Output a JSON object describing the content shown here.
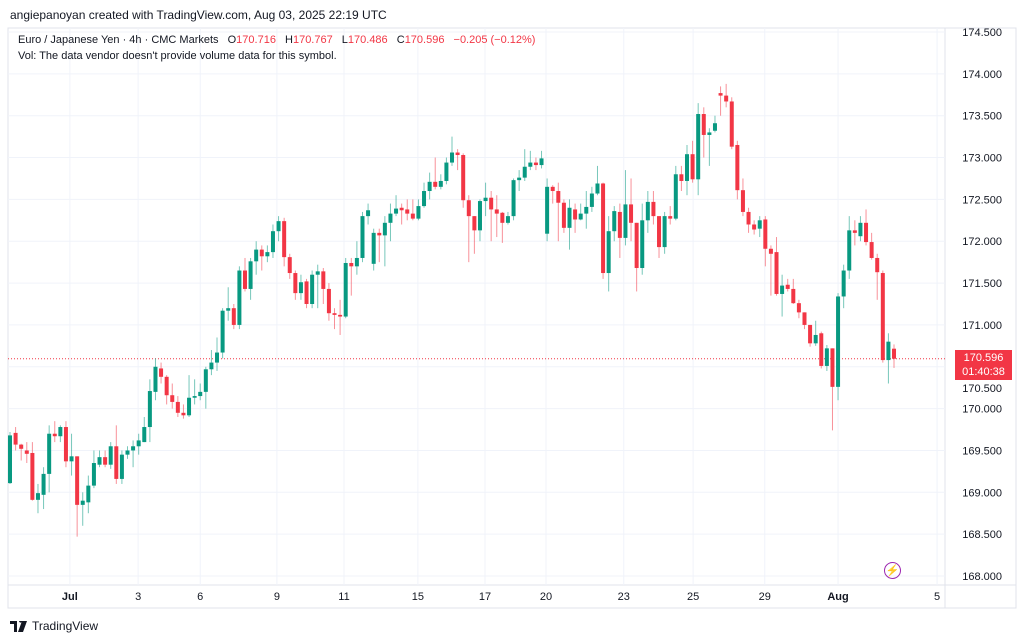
{
  "header": {
    "credit": "angiepanoyan created with TradingView.com, Aug 03, 2025 22:19 UTC",
    "symbol": "Euro / Japanese Yen · 4h · CMC Markets",
    "o_label": "O",
    "o_value": "170.716",
    "h_label": "H",
    "h_value": "170.767",
    "l_label": "L",
    "l_value": "170.486",
    "c_label": "C",
    "c_value": "170.596",
    "change": "−0.205 (−0.12%)",
    "vol_note": "Vol: The data vendor doesn't provide volume data for this symbol."
  },
  "price_tag": {
    "price": "170.596",
    "countdown": "01:40:38"
  },
  "footer": {
    "brand": "TradingView"
  },
  "icons": {
    "alert": "lightning-icon",
    "logo": "tradingview-logo-icon"
  },
  "colors": {
    "up": "#089981",
    "down": "#f23645",
    "grid": "#f0f3fa",
    "alert": "#9c27b0"
  },
  "chart_data": {
    "type": "candlestick",
    "title": "Euro / Japanese Yen · 4h · CMC Markets",
    "ylim": [
      168.0,
      174.5
    ],
    "yticks": [
      "168.000",
      "168.500",
      "169.000",
      "169.500",
      "170.000",
      "170.500",
      "171.000",
      "171.500",
      "172.000",
      "172.500",
      "173.000",
      "173.500",
      "174.000",
      "174.500"
    ],
    "xticks": [
      {
        "label": "Jul",
        "bar": 10.7,
        "bold": true
      },
      {
        "label": "3",
        "bar": 22.9
      },
      {
        "label": "6",
        "bar": 34
      },
      {
        "label": "9",
        "bar": 47.7
      },
      {
        "label": "11",
        "bar": 59.7
      },
      {
        "label": "15",
        "bar": 72.9
      },
      {
        "label": "17",
        "bar": 84.9
      },
      {
        "label": "20",
        "bar": 95.8
      },
      {
        "label": "23",
        "bar": 109.7
      },
      {
        "label": "25",
        "bar": 122.1
      },
      {
        "label": "29",
        "bar": 134.9
      },
      {
        "label": "Aug",
        "bar": 148,
        "bold": true
      },
      {
        "label": "5",
        "bar": 165.7
      }
    ],
    "last_price": 170.596,
    "ohlc": [
      [
        169.11,
        169.72,
        169.1,
        169.68
      ],
      [
        169.71,
        169.78,
        169.5,
        169.57
      ],
      [
        169.57,
        169.58,
        169.38,
        169.52
      ],
      [
        169.5,
        169.6,
        169.35,
        169.46
      ],
      [
        169.47,
        169.6,
        168.9,
        168.91
      ],
      [
        168.91,
        169.1,
        168.75,
        168.99
      ],
      [
        168.97,
        169.3,
        168.8,
        169.22
      ],
      [
        169.22,
        169.8,
        169.0,
        169.7
      ],
      [
        169.7,
        169.85,
        169.6,
        169.67
      ],
      [
        169.67,
        169.8,
        169.6,
        169.78
      ],
      [
        169.78,
        169.85,
        169.3,
        169.37
      ],
      [
        169.37,
        169.7,
        169.2,
        169.43
      ],
      [
        169.43,
        169.43,
        168.47,
        168.85
      ],
      [
        168.85,
        169.0,
        168.6,
        168.9
      ],
      [
        168.88,
        169.2,
        168.75,
        169.08
      ],
      [
        169.08,
        169.5,
        169.05,
        169.35
      ],
      [
        169.33,
        169.5,
        169.3,
        169.42
      ],
      [
        169.42,
        169.5,
        169.3,
        169.33
      ],
      [
        169.33,
        169.6,
        169.28,
        169.55
      ],
      [
        169.55,
        169.8,
        169.1,
        169.16
      ],
      [
        169.16,
        169.5,
        169.1,
        169.45
      ],
      [
        169.45,
        169.55,
        169.4,
        169.5
      ],
      [
        169.5,
        169.62,
        169.3,
        169.55
      ],
      [
        169.55,
        169.7,
        169.45,
        169.62
      ],
      [
        169.6,
        169.9,
        169.6,
        169.78
      ],
      [
        169.78,
        170.35,
        169.6,
        170.21
      ],
      [
        170.2,
        170.6,
        170.1,
        170.5
      ],
      [
        170.48,
        170.55,
        170.3,
        170.38
      ],
      [
        170.38,
        170.4,
        170.05,
        170.16
      ],
      [
        170.16,
        170.3,
        170.0,
        170.08
      ],
      [
        170.08,
        170.15,
        169.9,
        169.95
      ],
      [
        169.95,
        170.05,
        169.88,
        169.92
      ],
      [
        169.92,
        170.4,
        169.9,
        170.13
      ],
      [
        170.13,
        170.35,
        170.05,
        170.15
      ],
      [
        170.15,
        170.3,
        170.1,
        170.2
      ],
      [
        170.2,
        170.5,
        170.0,
        170.47
      ],
      [
        170.47,
        170.7,
        170.4,
        170.55
      ],
      [
        170.55,
        170.85,
        170.45,
        170.67
      ],
      [
        170.67,
        171.2,
        170.6,
        171.17
      ],
      [
        171.17,
        171.45,
        171.05,
        171.2
      ],
      [
        171.2,
        171.25,
        170.95,
        171.0
      ],
      [
        171.0,
        171.7,
        170.95,
        171.65
      ],
      [
        171.65,
        171.8,
        171.4,
        171.43
      ],
      [
        171.43,
        171.8,
        171.3,
        171.76
      ],
      [
        171.76,
        172.0,
        171.6,
        171.9
      ],
      [
        171.9,
        171.95,
        171.65,
        171.82
      ],
      [
        171.82,
        171.95,
        171.75,
        171.87
      ],
      [
        171.87,
        172.2,
        171.8,
        172.12
      ],
      [
        172.12,
        172.3,
        172.0,
        172.24
      ],
      [
        172.24,
        172.28,
        171.7,
        171.81
      ],
      [
        171.81,
        171.85,
        171.55,
        171.62
      ],
      [
        171.62,
        171.65,
        171.3,
        171.38
      ],
      [
        171.38,
        171.6,
        171.3,
        171.51
      ],
      [
        171.52,
        171.55,
        171.2,
        171.25
      ],
      [
        171.25,
        171.65,
        171.2,
        171.6
      ],
      [
        171.6,
        171.72,
        171.2,
        171.64
      ],
      [
        171.64,
        171.68,
        171.25,
        171.43
      ],
      [
        171.43,
        171.5,
        171.05,
        171.14
      ],
      [
        171.14,
        171.2,
        170.95,
        171.12
      ],
      [
        171.12,
        171.3,
        170.88,
        171.1
      ],
      [
        171.1,
        171.8,
        171.08,
        171.74
      ],
      [
        171.74,
        171.8,
        171.35,
        171.7
      ],
      [
        171.7,
        172.0,
        171.6,
        171.8
      ],
      [
        171.8,
        172.35,
        171.75,
        172.3
      ],
      [
        172.3,
        172.45,
        172.2,
        172.37
      ],
      [
        171.73,
        172.15,
        171.65,
        172.1
      ],
      [
        172.1,
        172.15,
        171.75,
        172.07
      ],
      [
        172.07,
        172.3,
        171.7,
        172.22
      ],
      [
        172.22,
        172.45,
        172.0,
        172.33
      ],
      [
        172.33,
        172.55,
        172.3,
        172.39
      ],
      [
        172.4,
        172.45,
        172.2,
        172.37
      ],
      [
        172.38,
        172.5,
        172.25,
        172.33
      ],
      [
        172.33,
        172.5,
        172.25,
        172.27
      ],
      [
        172.27,
        172.5,
        172.25,
        172.42
      ],
      [
        172.42,
        172.7,
        172.4,
        172.6
      ],
      [
        172.6,
        172.82,
        172.5,
        172.71
      ],
      [
        172.71,
        173.0,
        172.62,
        172.65
      ],
      [
        172.65,
        172.8,
        172.62,
        172.72
      ],
      [
        172.72,
        173.0,
        172.68,
        172.94
      ],
      [
        172.94,
        173.25,
        172.9,
        173.06
      ],
      [
        173.06,
        173.1,
        172.85,
        173.03
      ],
      [
        173.03,
        173.05,
        172.4,
        172.49
      ],
      [
        172.49,
        172.55,
        171.75,
        172.3
      ],
      [
        172.3,
        172.3,
        171.85,
        172.13
      ],
      [
        172.13,
        172.5,
        172.0,
        172.48
      ],
      [
        172.48,
        172.7,
        172.3,
        172.52
      ],
      [
        172.52,
        172.6,
        172.0,
        172.38
      ],
      [
        172.38,
        172.55,
        172.05,
        172.33
      ],
      [
        172.34,
        172.35,
        171.98,
        172.22
      ],
      [
        172.22,
        172.35,
        172.2,
        172.3
      ],
      [
        172.3,
        172.75,
        172.25,
        172.73
      ],
      [
        172.73,
        172.85,
        172.6,
        172.76
      ],
      [
        172.76,
        173.1,
        172.72,
        172.89
      ],
      [
        172.89,
        173.08,
        172.85,
        172.94
      ],
      [
        172.94,
        173.0,
        172.85,
        172.91
      ],
      [
        172.91,
        173.08,
        172.87,
        172.99
      ],
      [
        172.09,
        172.75,
        172.0,
        172.65
      ],
      [
        172.65,
        172.67,
        172.45,
        172.6
      ],
      [
        172.6,
        172.7,
        172.0,
        172.46
      ],
      [
        172.46,
        172.5,
        172.1,
        172.16
      ],
      [
        172.16,
        172.5,
        171.9,
        172.4
      ],
      [
        172.38,
        172.45,
        172.1,
        172.26
      ],
      [
        172.26,
        172.45,
        172.25,
        172.33
      ],
      [
        172.33,
        172.6,
        172.15,
        172.41
      ],
      [
        172.41,
        172.65,
        172.35,
        172.57
      ],
      [
        172.57,
        172.9,
        172.55,
        172.69
      ],
      [
        172.69,
        172.7,
        171.55,
        171.62
      ],
      [
        171.62,
        172.3,
        171.4,
        172.12
      ],
      [
        172.12,
        172.42,
        172.0,
        172.36
      ],
      [
        172.35,
        172.45,
        171.8,
        172.04
      ],
      [
        172.04,
        172.85,
        171.95,
        172.44
      ],
      [
        172.44,
        172.75,
        172.0,
        172.22
      ],
      [
        172.22,
        172.22,
        171.4,
        171.68
      ],
      [
        171.68,
        172.45,
        171.6,
        172.25
      ],
      [
        172.25,
        172.6,
        172.1,
        172.47
      ],
      [
        172.47,
        172.6,
        172.2,
        172.3
      ],
      [
        172.3,
        172.3,
        171.8,
        171.93
      ],
      [
        171.93,
        172.35,
        171.85,
        172.3
      ],
      [
        172.3,
        172.42,
        172.2,
        172.27
      ],
      [
        172.27,
        172.9,
        172.25,
        172.8
      ],
      [
        172.8,
        172.9,
        172.6,
        172.72
      ],
      [
        172.72,
        173.15,
        172.55,
        173.04
      ],
      [
        173.04,
        173.2,
        172.7,
        172.74
      ],
      [
        172.74,
        173.65,
        172.55,
        173.52
      ],
      [
        173.52,
        173.6,
        173.0,
        173.27
      ],
      [
        173.27,
        173.35,
        172.9,
        173.3
      ],
      [
        173.32,
        173.5,
        173.3,
        173.41
      ],
      [
        173.77,
        173.85,
        173.5,
        173.74
      ],
      [
        173.74,
        173.88,
        173.6,
        173.67
      ],
      [
        173.67,
        173.72,
        173.1,
        173.13
      ],
      [
        173.15,
        173.2,
        172.5,
        172.61
      ],
      [
        172.61,
        172.75,
        172.3,
        172.35
      ],
      [
        172.35,
        172.4,
        172.1,
        172.2
      ],
      [
        172.2,
        172.25,
        172.08,
        172.14
      ],
      [
        172.15,
        172.3,
        172.05,
        172.25
      ],
      [
        172.26,
        172.3,
        171.7,
        171.91
      ],
      [
        171.91,
        171.95,
        171.35,
        171.85
      ],
      [
        171.87,
        172.05,
        171.35,
        171.37
      ],
      [
        171.37,
        171.6,
        171.1,
        171.47
      ],
      [
        171.48,
        171.55,
        171.4,
        171.43
      ],
      [
        171.43,
        171.55,
        171.25,
        171.26
      ],
      [
        171.26,
        171.3,
        171.08,
        171.15
      ],
      [
        171.15,
        171.15,
        170.95,
        171.0
      ],
      [
        171.0,
        171.0,
        170.74,
        170.78
      ],
      [
        170.78,
        171.05,
        170.75,
        170.88
      ],
      [
        170.9,
        170.92,
        170.48,
        170.51
      ],
      [
        170.51,
        170.76,
        170.45,
        170.72
      ],
      [
        170.72,
        170.72,
        169.74,
        170.26
      ],
      [
        170.26,
        171.38,
        170.1,
        171.34
      ],
      [
        171.34,
        171.72,
        171.2,
        171.65
      ],
      [
        171.65,
        172.3,
        171.55,
        172.13
      ],
      [
        172.13,
        172.25,
        171.95,
        172.1
      ],
      [
        172.06,
        172.3,
        172.0,
        172.22
      ],
      [
        172.22,
        172.38,
        171.95,
        171.99
      ],
      [
        171.99,
        172.1,
        171.78,
        171.8
      ],
      [
        171.8,
        171.85,
        171.3,
        171.63
      ],
      [
        171.62,
        171.65,
        170.55,
        170.58
      ],
      [
        170.58,
        170.9,
        170.3,
        170.8
      ],
      [
        170.716,
        170.767,
        170.486,
        170.596
      ]
    ]
  }
}
